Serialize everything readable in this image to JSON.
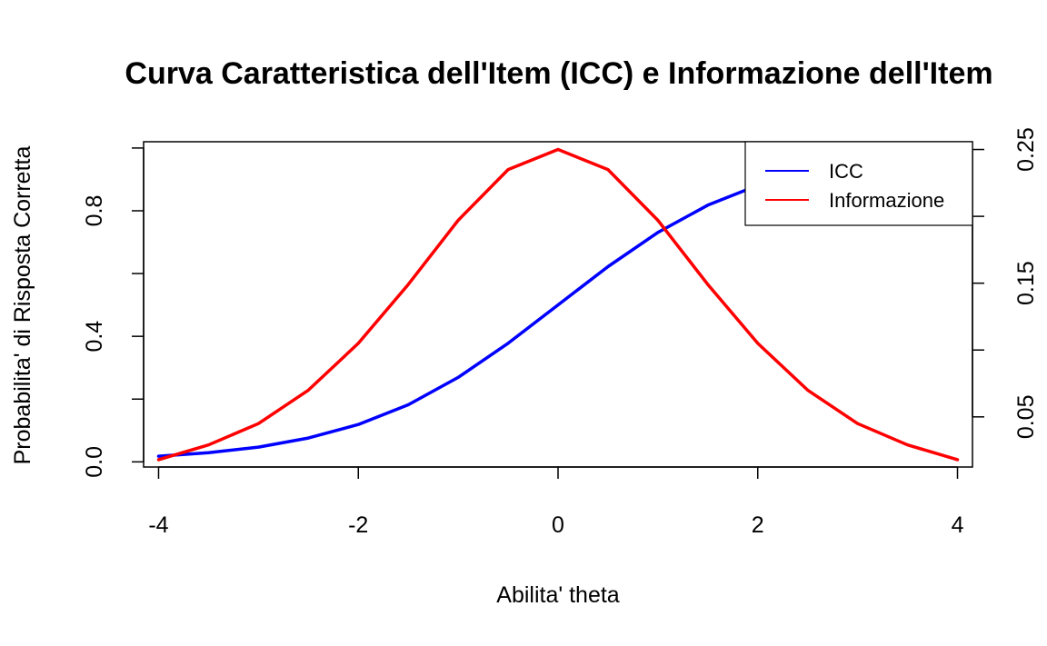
{
  "chart_data": {
    "type": "line",
    "title": "Curva Caratteristica dell'Item (ICC) e Informazione dell'Item",
    "xlabel": "Abilita' theta",
    "ylabel": "Probabilita' di Risposta Corretta",
    "xlim": [
      -4.15,
      4.15
    ],
    "ylim": [
      -0.0164,
      1.02
    ],
    "y2lim": [
      0.0125,
      0.2558
    ],
    "x_ticks": [
      -4,
      -2,
      0,
      2,
      4
    ],
    "y_ticks": [
      0.0,
      0.2,
      0.4,
      0.6,
      0.8,
      1.0
    ],
    "y_tick_labels": [
      "0.0",
      "",
      "0.4",
      "",
      "0.8",
      ""
    ],
    "y2_ticks": [
      0.05,
      0.1,
      0.15,
      0.2,
      0.25
    ],
    "y2_tick_labels": [
      "0.05",
      "",
      "0.15",
      "",
      "0.25"
    ],
    "legend_position": "top-right",
    "series": [
      {
        "name": "ICC",
        "color": "#0000ff",
        "axis": "left",
        "x": [
          -4,
          -3.5,
          -3,
          -2.5,
          -2,
          -1.5,
          -1,
          -0.5,
          0,
          0.5,
          1,
          1.5,
          2,
          2.5,
          3,
          3.5,
          4
        ],
        "y": [
          0.018,
          0.029,
          0.047,
          0.076,
          0.119,
          0.182,
          0.269,
          0.378,
          0.5,
          0.622,
          0.731,
          0.818,
          0.881,
          0.924,
          0.953,
          0.971,
          0.982
        ]
      },
      {
        "name": "Informazione",
        "color": "#ff0000",
        "axis": "right",
        "x": [
          -4,
          -3.5,
          -3,
          -2.5,
          -2,
          -1.5,
          -1,
          -0.5,
          0,
          0.5,
          1,
          1.5,
          2,
          2.5,
          3,
          3.5,
          4
        ],
        "y": [
          0.018,
          0.029,
          0.045,
          0.07,
          0.105,
          0.149,
          0.197,
          0.235,
          0.25,
          0.235,
          0.197,
          0.149,
          0.105,
          0.07,
          0.045,
          0.029,
          0.018
        ]
      }
    ]
  }
}
